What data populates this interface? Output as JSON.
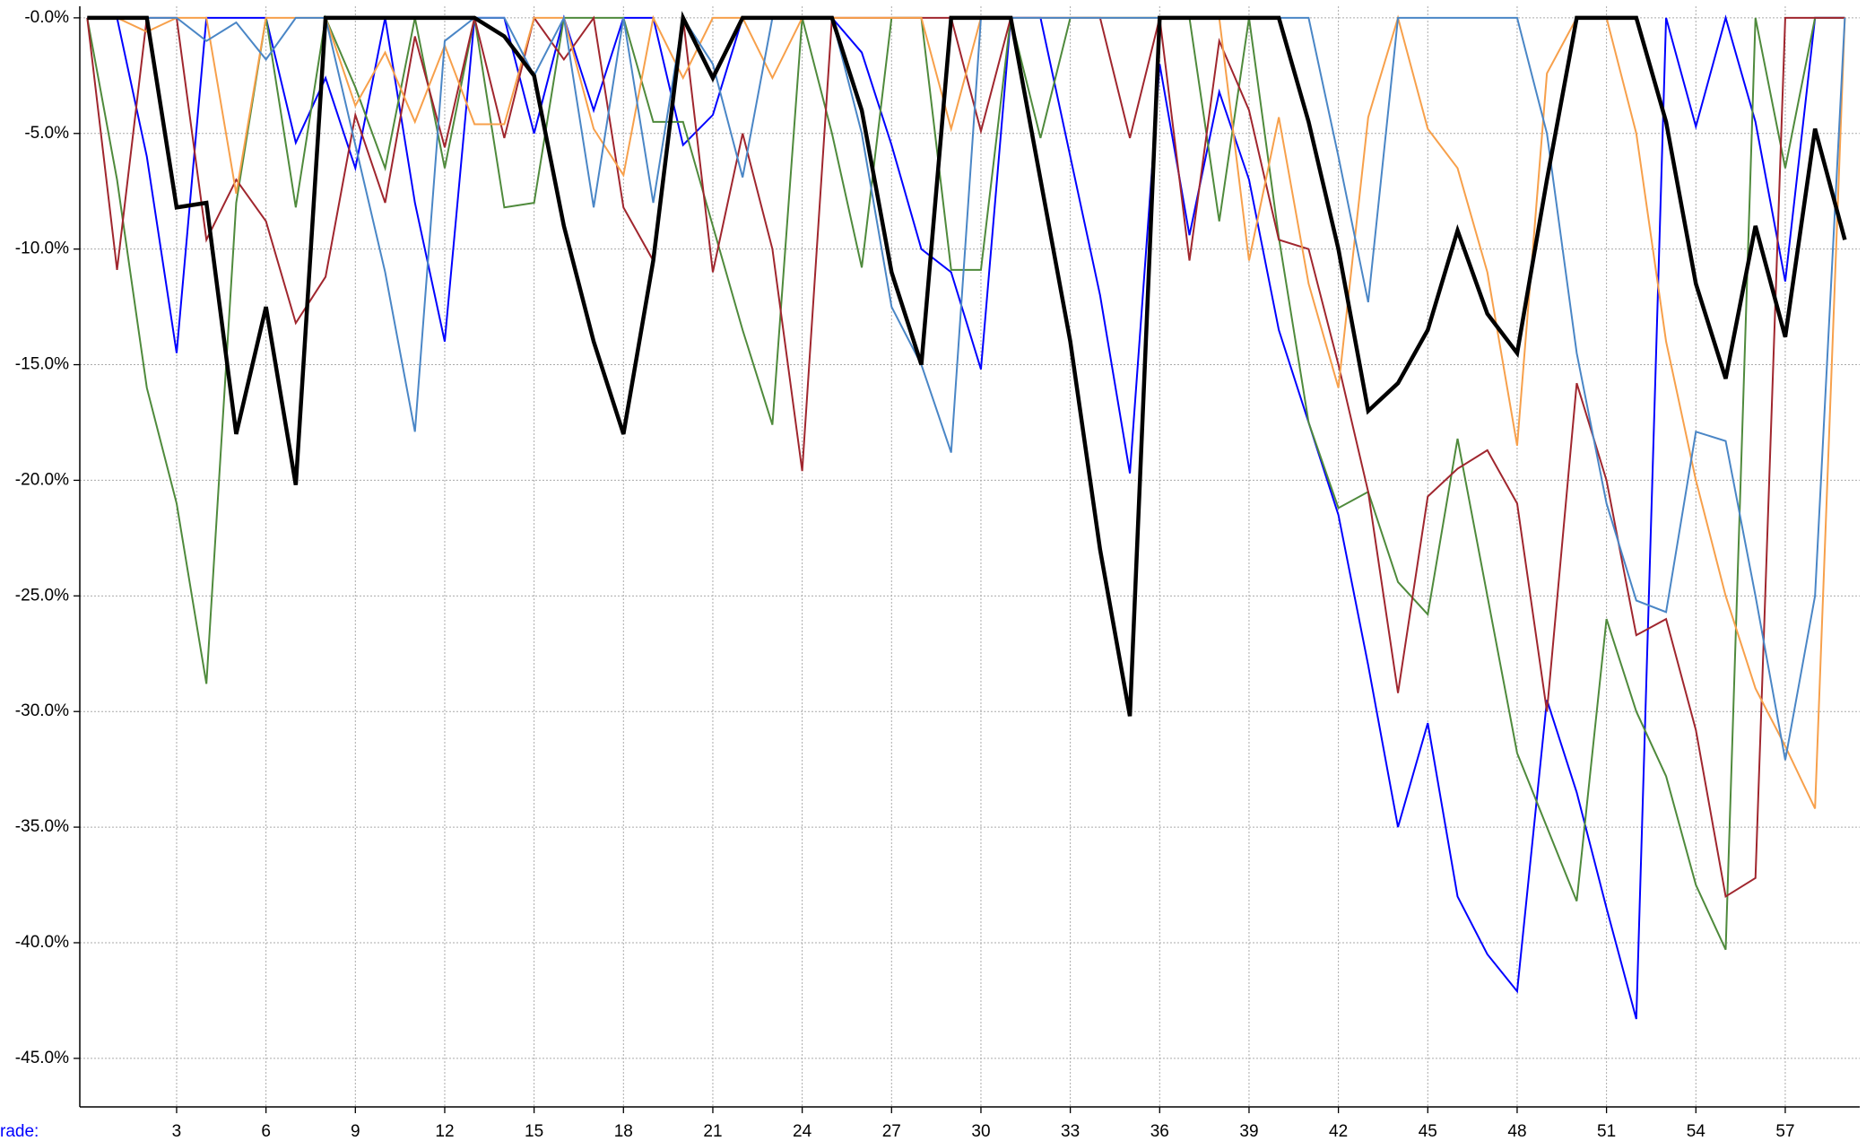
{
  "chart_data": {
    "type": "line",
    "xlabel": "rade:",
    "x": [
      0,
      1,
      2,
      3,
      4,
      5,
      6,
      7,
      8,
      9,
      10,
      11,
      12,
      13,
      14,
      15,
      16,
      17,
      18,
      19,
      20,
      21,
      22,
      23,
      24,
      25,
      26,
      27,
      28,
      29,
      30,
      31,
      32,
      33,
      34,
      35,
      36,
      37,
      38,
      39,
      40,
      41,
      42,
      43,
      44,
      45,
      46,
      47,
      48,
      49,
      50,
      51,
      52,
      53,
      54,
      55,
      56,
      57,
      58,
      59
    ],
    "xlim": [
      -0.25,
      59.5
    ],
    "xticks": [
      3,
      6,
      9,
      12,
      15,
      18,
      21,
      24,
      27,
      30,
      33,
      36,
      39,
      42,
      45,
      48,
      51,
      54,
      57
    ],
    "ylim": [
      -47.1,
      0.5
    ],
    "yticks": [
      {
        "value": 0,
        "label": "-0.0%"
      },
      {
        "value": -5,
        "label": "-5.0%"
      },
      {
        "value": -10,
        "label": "-10.0%"
      },
      {
        "value": -15,
        "label": "-15.0%"
      },
      {
        "value": -20,
        "label": "-20.0%"
      },
      {
        "value": -25,
        "label": "-25.0%"
      },
      {
        "value": -30,
        "label": "-30.0%"
      },
      {
        "value": -35,
        "label": "-35.0%"
      },
      {
        "value": -40,
        "label": "-40.0%"
      },
      {
        "value": -45,
        "label": "-45.0%"
      }
    ],
    "grid": true,
    "series": [
      {
        "color": "#0000ff",
        "width": 2,
        "values": [
          0,
          0,
          -6,
          -14.5,
          0,
          0,
          0,
          -5.4,
          -2.6,
          -6.5,
          0,
          -8,
          -14,
          0,
          0,
          -5,
          0,
          -4,
          0,
          0,
          -5.5,
          -4.2,
          0,
          0,
          0,
          0,
          -1.5,
          -5.5,
          -10,
          -11,
          -15.2,
          0,
          0,
          -6,
          -12,
          -19.7,
          -2,
          -9.4,
          -3.2,
          -7,
          -13.5,
          -17.5,
          -21.5,
          -28,
          -35,
          -30.5,
          -38,
          -40.5,
          -42.1,
          -29.5,
          -33.5,
          -38.5,
          -43.3,
          0,
          -4.7,
          0,
          -4.5,
          -11.4,
          0,
          0
        ]
      },
      {
        "color": "#4f8a3c",
        "width": 2,
        "values": [
          0,
          -7,
          -16,
          -21,
          -28.8,
          -8,
          0,
          -8.2,
          0,
          -3,
          -6.5,
          0,
          -6.5,
          0,
          -8.2,
          -8,
          0,
          0,
          0,
          -4.5,
          -4.5,
          -9,
          -13.5,
          -17.6,
          0,
          -5,
          -10.8,
          0,
          0,
          -10.9,
          -10.9,
          0,
          -5.2,
          0,
          0,
          0,
          0,
          0,
          -8.8,
          0,
          -9.5,
          -17.5,
          -21.2,
          -20.5,
          -24.4,
          -25.8,
          -18.2,
          -25,
          -31.8,
          -35,
          -38.2,
          -26,
          -30,
          -32.8,
          -37.5,
          -40.3,
          0,
          -6.5,
          0,
          0
        ]
      },
      {
        "color": "#a0262e",
        "width": 2,
        "values": [
          0,
          -10.9,
          0,
          0,
          -9.6,
          -7,
          -8.8,
          -13.2,
          -11.2,
          -4.2,
          -8,
          -0.8,
          -5.6,
          0,
          -5.2,
          0,
          -1.8,
          0,
          -8.2,
          -10.5,
          0,
          -11,
          -5,
          -10,
          -19.6,
          0,
          0,
          0,
          0,
          0,
          -4.9,
          0,
          0,
          0,
          0,
          -5.2,
          0,
          -10.5,
          -1,
          -4,
          -9.6,
          -10,
          -15,
          -20.5,
          -29.2,
          -20.7,
          -19.5,
          -18.7,
          -21,
          -30,
          -15.8,
          -20,
          -26.7,
          -26,
          -30.8,
          -38,
          -37.2,
          0,
          0,
          0
        ]
      },
      {
        "color": "#f7a04b",
        "width": 2,
        "values": [
          0,
          0,
          -0.6,
          0,
          0,
          -7.6,
          0,
          0,
          0,
          -3.8,
          -1.5,
          -4.5,
          -1.2,
          -4.6,
          -4.6,
          0,
          0,
          -4.8,
          -6.8,
          0,
          -2.6,
          0,
          0,
          -2.6,
          0,
          0,
          0,
          0,
          0,
          -4.8,
          0,
          0,
          0,
          0,
          0,
          0,
          0,
          0,
          0,
          -10.5,
          -4.3,
          -11.5,
          -16,
          -4.3,
          0,
          -4.8,
          -6.5,
          -11,
          -18.5,
          -2.4,
          0,
          0,
          -5,
          -14,
          -20,
          -25,
          -29,
          -31.5,
          -34.2,
          0
        ]
      },
      {
        "color": "#4a86c6",
        "width": 2,
        "values": [
          0,
          0,
          0,
          0,
          -1,
          -0.2,
          -1.8,
          0,
          0,
          -5.5,
          -11,
          -17.9,
          -1,
          0,
          0,
          -2.5,
          0,
          -8.2,
          0,
          -8,
          0,
          -2,
          -6.9,
          0,
          0,
          0,
          -5,
          -12.5,
          -15,
          -18.8,
          0,
          0,
          0,
          0,
          0,
          0,
          0,
          0,
          0,
          0,
          0,
          0,
          -6,
          -12.3,
          0,
          0,
          0,
          0,
          0,
          -5,
          -14.5,
          -21,
          -25.2,
          -25.7,
          -17.9,
          -18.3,
          -25,
          -32.1,
          -25,
          0
        ]
      },
      {
        "color": "#000000",
        "width": 4.5,
        "values": [
          0,
          0,
          0,
          -8.2,
          -8,
          -18,
          -12.5,
          -20.2,
          0,
          0,
          0,
          0,
          0,
          0,
          -0.8,
          -2.5,
          -9,
          -14,
          -18,
          -10.5,
          0,
          -2.6,
          0,
          0,
          0,
          0,
          -4,
          -11,
          -15,
          0,
          0,
          0,
          -7,
          -14,
          -23,
          -30.2,
          0,
          0,
          0,
          0,
          0,
          -4.5,
          -10,
          -17,
          -15.8,
          -13.5,
          -9.2,
          -12.8,
          -14.5,
          -7,
          0,
          0,
          0,
          -4.5,
          -11.5,
          -15.6,
          -9,
          -13.8,
          -4.8,
          -9.6
        ]
      }
    ]
  }
}
